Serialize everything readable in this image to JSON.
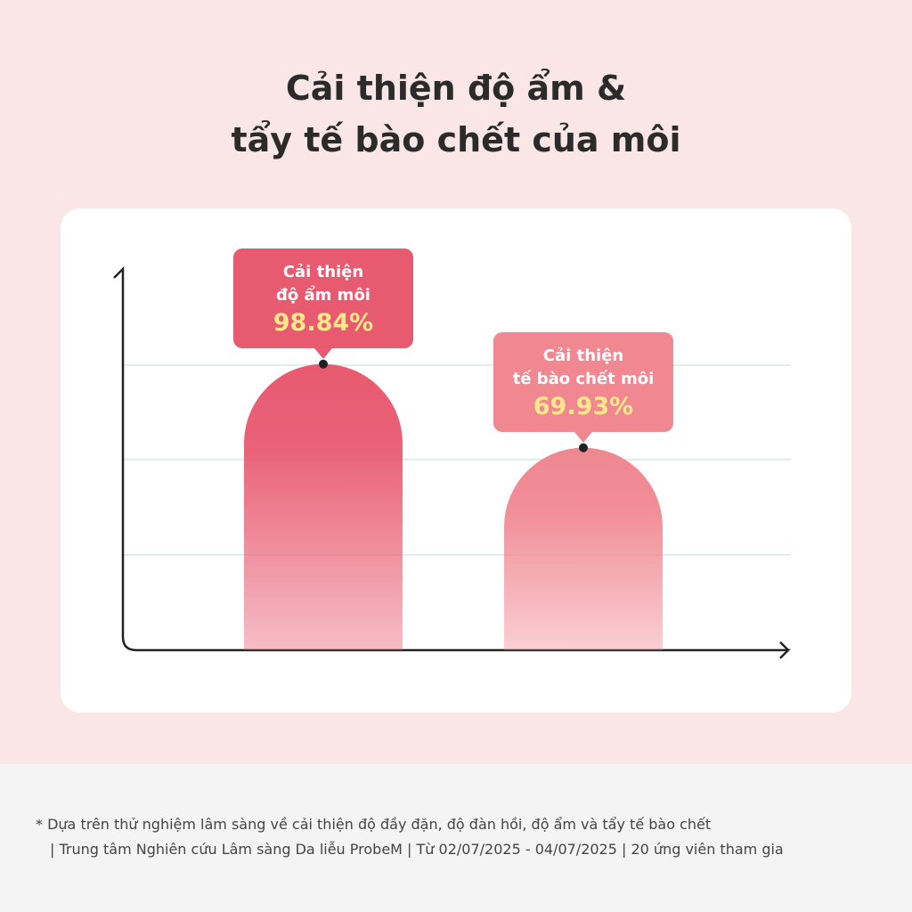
{
  "chart_data": {
    "type": "bar",
    "title": "Cải thiện độ ẩm &\ntẩy tế bào chết của môi",
    "categories": [
      "Cải thiện\nđộ ẩm môi",
      "Cải thiện\ntế bào chết môi"
    ],
    "values": [
      98.84,
      69.93
    ],
    "value_labels": [
      "98.84%",
      "69.93%"
    ],
    "colors": [
      "#e85a70",
      "#f08791"
    ],
    "ylim": [
      0,
      100
    ]
  },
  "footnote": [
    "* Dựa trên thử nghiệm lâm sàng về cải thiện độ đầy đặn, độ đàn hồi, độ ẩm và tẩy tế bào chết",
    "| Trung tâm Nghiên cứu Lâm sàng Da liễu ProbeM | Từ 02/07/2025 - 04/07/2025 | 20 ứng viên tham gia"
  ]
}
